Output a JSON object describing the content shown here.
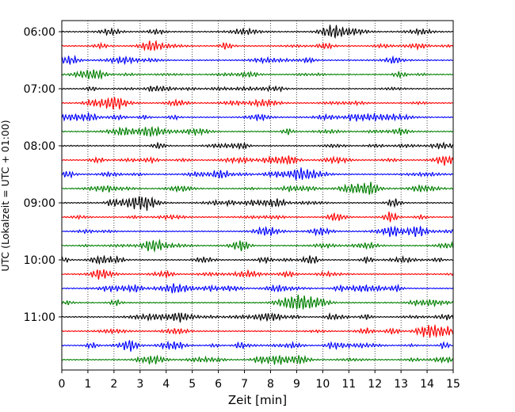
{
  "chart_data": {
    "type": "line",
    "title": "",
    "xlabel": "Zeit  [min]",
    "ylabel": "UTC (Lokalzeit = UTC + 01:00)",
    "xlim": [
      0,
      15
    ],
    "x_ticks": [
      0,
      1,
      2,
      3,
      4,
      5,
      6,
      7,
      8,
      9,
      10,
      11,
      12,
      13,
      14,
      15
    ],
    "y_ticks": [
      "06:00",
      "07:00",
      "08:00",
      "09:00",
      "10:00",
      "11:00"
    ],
    "grid": "vertical dotted",
    "legend": "none",
    "trace_interval_minutes": 15,
    "start_time": "06:00",
    "end_time": "12:00",
    "trace_colors": [
      "#000000",
      "#ff0000",
      "#0000ff",
      "#008000"
    ],
    "traces": [
      {
        "time": "06:00",
        "color": "#000000"
      },
      {
        "time": "06:15",
        "color": "#ff0000"
      },
      {
        "time": "06:30",
        "color": "#0000ff"
      },
      {
        "time": "06:45",
        "color": "#008000"
      },
      {
        "time": "07:00",
        "color": "#000000"
      },
      {
        "time": "07:15",
        "color": "#ff0000"
      },
      {
        "time": "07:30",
        "color": "#0000ff"
      },
      {
        "time": "07:45",
        "color": "#008000"
      },
      {
        "time": "08:00",
        "color": "#000000"
      },
      {
        "time": "08:15",
        "color": "#ff0000"
      },
      {
        "time": "08:30",
        "color": "#0000ff"
      },
      {
        "time": "08:45",
        "color": "#008000"
      },
      {
        "time": "09:00",
        "color": "#000000"
      },
      {
        "time": "09:15",
        "color": "#ff0000"
      },
      {
        "time": "09:30",
        "color": "#0000ff"
      },
      {
        "time": "09:45",
        "color": "#008000"
      },
      {
        "time": "10:00",
        "color": "#000000"
      },
      {
        "time": "10:15",
        "color": "#ff0000"
      },
      {
        "time": "10:30",
        "color": "#0000ff"
      },
      {
        "time": "10:45",
        "color": "#008000"
      },
      {
        "time": "11:00",
        "color": "#000000"
      },
      {
        "time": "11:15",
        "color": "#ff0000"
      },
      {
        "time": "11:30",
        "color": "#0000ff"
      },
      {
        "time": "11:45",
        "color": "#008000"
      }
    ]
  }
}
